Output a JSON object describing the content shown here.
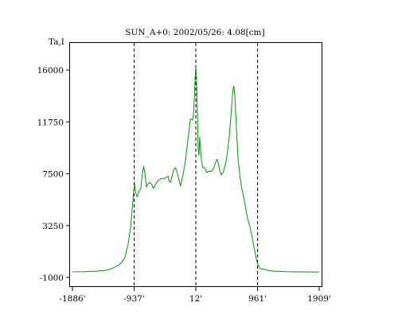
{
  "chart_data": {
    "type": "line",
    "title": "SUN_A+0: 2002/05/26: 4.08[cm]",
    "ylabel": "Ta,I",
    "xlabel": "",
    "xlim": [
      -1886,
      1909
    ],
    "ylim": [
      -1000,
      17700
    ],
    "x_ticks": [
      {
        "value": -1886,
        "label": "-1886'"
      },
      {
        "value": -937,
        "label": "-937'"
      },
      {
        "value": 12,
        "label": "12'"
      },
      {
        "value": 961,
        "label": "961'"
      },
      {
        "value": 1909,
        "label": "1909'"
      }
    ],
    "y_ticks": [
      {
        "value": 16000,
        "label": "16000"
      },
      {
        "value": 11750,
        "label": "11750"
      },
      {
        "value": 7500,
        "label": "7500"
      },
      {
        "value": 3250,
        "label": "3250"
      },
      {
        "value": -1000,
        "label": "-1000"
      }
    ],
    "markers": [
      -937,
      12,
      961
    ],
    "grid": false,
    "colors": {
      "series": "#009900",
      "axis": "#000000",
      "marker": "#000000"
    },
    "series": [
      {
        "name": "",
        "points": [
          [
            -1886,
            -540
          ],
          [
            -1700,
            -530
          ],
          [
            -1500,
            -480
          ],
          [
            -1350,
            -400
          ],
          [
            -1250,
            -200
          ],
          [
            -1150,
            100
          ],
          [
            -1080,
            600
          ],
          [
            -1030,
            1700
          ],
          [
            -990,
            3200
          ],
          [
            -965,
            4700
          ],
          [
            -945,
            6000
          ],
          [
            -930,
            6700
          ],
          [
            -915,
            6000
          ],
          [
            -890,
            5600
          ],
          [
            -860,
            6100
          ],
          [
            -835,
            6300
          ],
          [
            -810,
            7600
          ],
          [
            -790,
            8100
          ],
          [
            -770,
            7500
          ],
          [
            -748,
            6400
          ],
          [
            -720,
            6700
          ],
          [
            -695,
            6800
          ],
          [
            -665,
            6600
          ],
          [
            -638,
            6300
          ],
          [
            -610,
            6600
          ],
          [
            -575,
            6900
          ],
          [
            -530,
            7100
          ],
          [
            -480,
            7100
          ],
          [
            -440,
            7200
          ],
          [
            -415,
            7300
          ],
          [
            -400,
            6900
          ],
          [
            -378,
            6800
          ],
          [
            -355,
            7300
          ],
          [
            -330,
            7800
          ],
          [
            -300,
            8000
          ],
          [
            -265,
            7400
          ],
          [
            -225,
            6500
          ],
          [
            -185,
            7400
          ],
          [
            -150,
            8500
          ],
          [
            -110,
            10300
          ],
          [
            -70,
            12000
          ],
          [
            -40,
            11900
          ],
          [
            -25,
            12300
          ],
          [
            -10,
            13700
          ],
          [
            0,
            15300
          ],
          [
            10,
            16200
          ],
          [
            20,
            15600
          ],
          [
            33,
            13000
          ],
          [
            48,
            9500
          ],
          [
            60,
            9000
          ],
          [
            72,
            10500
          ],
          [
            85,
            9500
          ],
          [
            98,
            8600
          ],
          [
            120,
            8000
          ],
          [
            148,
            8000
          ],
          [
            180,
            7600
          ],
          [
            215,
            7700
          ],
          [
            255,
            7700
          ],
          [
            285,
            7900
          ],
          [
            315,
            8400
          ],
          [
            340,
            8700
          ],
          [
            360,
            8300
          ],
          [
            382,
            7700
          ],
          [
            405,
            7400
          ],
          [
            440,
            7700
          ],
          [
            480,
            8600
          ],
          [
            520,
            10200
          ],
          [
            555,
            12400
          ],
          [
            580,
            14300
          ],
          [
            595,
            14700
          ],
          [
            610,
            14000
          ],
          [
            635,
            11400
          ],
          [
            662,
            8700
          ],
          [
            692,
            7200
          ],
          [
            718,
            6300
          ],
          [
            748,
            5600
          ],
          [
            778,
            4700
          ],
          [
            810,
            3800
          ],
          [
            845,
            3100
          ],
          [
            878,
            2300
          ],
          [
            905,
            1500
          ],
          [
            935,
            700
          ],
          [
            962,
            100
          ],
          [
            990,
            -200
          ],
          [
            1020,
            -300
          ],
          [
            1080,
            -350
          ],
          [
            1150,
            -450
          ],
          [
            1250,
            -500
          ],
          [
            1400,
            -530
          ],
          [
            1600,
            -545
          ],
          [
            1909,
            -550
          ]
        ]
      }
    ]
  }
}
